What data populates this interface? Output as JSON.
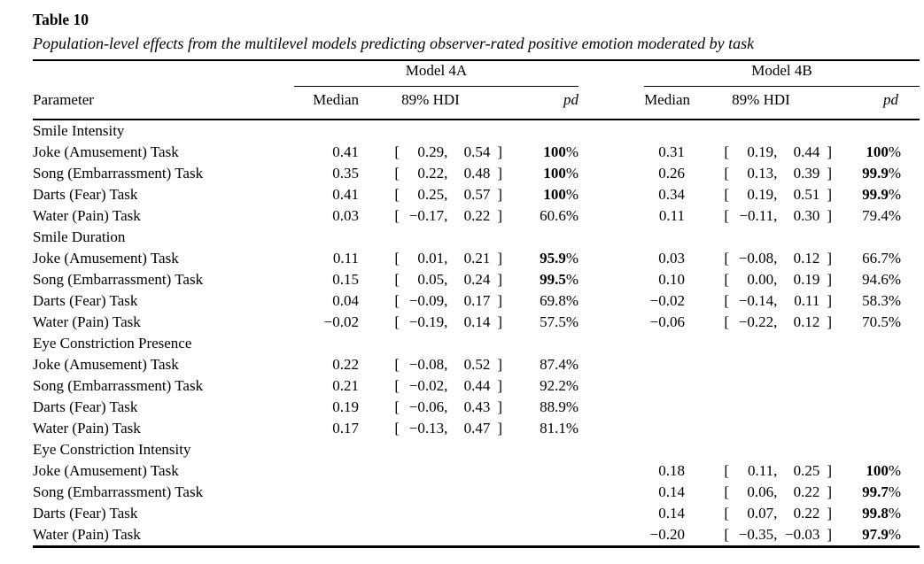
{
  "table": {
    "label": "Table 10",
    "caption": "Population-level effects from the multilevel models predicting observer-rated positive emotion moderated by task",
    "col_groups": [
      {
        "label": "Model 4A"
      },
      {
        "label": "Model 4B"
      }
    ],
    "columns": {
      "parameter": "Parameter",
      "median": "Median",
      "hdi": "89% HDI",
      "pd": "pd"
    },
    "sections": [
      {
        "header": "Smile Intensity",
        "rows": [
          {
            "parameter": "Joke (Amusement) Task",
            "m4a": {
              "median": "0.41",
              "hdi_lo": "0.29",
              "hdi_hi": "0.54",
              "pd": "100%",
              "pd_bold": true
            },
            "m4b": {
              "median": "0.31",
              "hdi_lo": "0.19",
              "hdi_hi": "0.44",
              "pd": "100%",
              "pd_bold": true
            }
          },
          {
            "parameter": "Song (Embarrassment) Task",
            "m4a": {
              "median": "0.35",
              "hdi_lo": "0.22",
              "hdi_hi": "0.48",
              "pd": "100%",
              "pd_bold": true
            },
            "m4b": {
              "median": "0.26",
              "hdi_lo": "0.13",
              "hdi_hi": "0.39",
              "pd": "99.9%",
              "pd_bold": true
            }
          },
          {
            "parameter": "Darts (Fear) Task",
            "m4a": {
              "median": "0.41",
              "hdi_lo": "0.25",
              "hdi_hi": "0.57",
              "pd": "100%",
              "pd_bold": true
            },
            "m4b": {
              "median": "0.34",
              "hdi_lo": "0.19",
              "hdi_hi": "0.51",
              "pd": "99.9%",
              "pd_bold": true
            }
          },
          {
            "parameter": "Water (Pain) Task",
            "m4a": {
              "median": "0.03",
              "hdi_lo": "−0.17",
              "hdi_hi": "0.22",
              "pd": "60.6%",
              "pd_bold": false
            },
            "m4b": {
              "median": "0.11",
              "hdi_lo": "−0.11",
              "hdi_hi": "0.30",
              "pd": "79.4%",
              "pd_bold": false
            }
          }
        ]
      },
      {
        "header": "Smile Duration",
        "rows": [
          {
            "parameter": "Joke (Amusement) Task",
            "m4a": {
              "median": "0.11",
              "hdi_lo": "0.01",
              "hdi_hi": "0.21",
              "pd": "95.9%",
              "pd_bold": true
            },
            "m4b": {
              "median": "0.03",
              "hdi_lo": "−0.08",
              "hdi_hi": "0.12",
              "pd": "66.7%",
              "pd_bold": false
            }
          },
          {
            "parameter": "Song (Embarrassment) Task",
            "m4a": {
              "median": "0.15",
              "hdi_lo": "0.05",
              "hdi_hi": "0.24",
              "pd": "99.5%",
              "pd_bold": true
            },
            "m4b": {
              "median": "0.10",
              "hdi_lo": "0.00",
              "hdi_hi": "0.19",
              "pd": "94.6%",
              "pd_bold": false
            }
          },
          {
            "parameter": "Darts (Fear) Task",
            "m4a": {
              "median": "0.04",
              "hdi_lo": "−0.09",
              "hdi_hi": "0.17",
              "pd": "69.8%",
              "pd_bold": false
            },
            "m4b": {
              "median": "−0.02",
              "hdi_lo": "−0.14",
              "hdi_hi": "0.11",
              "pd": "58.3%",
              "pd_bold": false
            }
          },
          {
            "parameter": "Water (Pain) Task",
            "m4a": {
              "median": "−0.02",
              "hdi_lo": "−0.19",
              "hdi_hi": "0.14",
              "pd": "57.5%",
              "pd_bold": false
            },
            "m4b": {
              "median": "−0.06",
              "hdi_lo": "−0.22",
              "hdi_hi": "0.12",
              "pd": "70.5%",
              "pd_bold": false
            }
          }
        ]
      },
      {
        "header": "Eye Constriction Presence",
        "rows": [
          {
            "parameter": "Joke (Amusement) Task",
            "m4a": {
              "median": "0.22",
              "hdi_lo": "−0.08",
              "hdi_hi": "0.52",
              "pd": "87.4%",
              "pd_bold": false
            },
            "m4b": null
          },
          {
            "parameter": "Song (Embarrassment) Task",
            "m4a": {
              "median": "0.21",
              "hdi_lo": "−0.02",
              "hdi_hi": "0.44",
              "pd": "92.2%",
              "pd_bold": false
            },
            "m4b": null
          },
          {
            "parameter": "Darts (Fear) Task",
            "m4a": {
              "median": "0.19",
              "hdi_lo": "−0.06",
              "hdi_hi": "0.43",
              "pd": "88.9%",
              "pd_bold": false
            },
            "m4b": null
          },
          {
            "parameter": "Water (Pain) Task",
            "m4a": {
              "median": "0.17",
              "hdi_lo": "−0.13",
              "hdi_hi": "0.47",
              "pd": "81.1%",
              "pd_bold": false
            },
            "m4b": null
          }
        ]
      },
      {
        "header": "Eye Constriction Intensity",
        "rows": [
          {
            "parameter": "Joke (Amusement) Task",
            "m4a": null,
            "m4b": {
              "median": "0.18",
              "hdi_lo": "0.11",
              "hdi_hi": "0.25",
              "pd": "100%",
              "pd_bold": true
            }
          },
          {
            "parameter": "Song (Embarrassment) Task",
            "m4a": null,
            "m4b": {
              "median": "0.14",
              "hdi_lo": "0.06",
              "hdi_hi": "0.22",
              "pd": "99.7%",
              "pd_bold": true
            }
          },
          {
            "parameter": "Darts (Fear) Task",
            "m4a": null,
            "m4b": {
              "median": "0.14",
              "hdi_lo": "0.07",
              "hdi_hi": "0.22",
              "pd": "99.8%",
              "pd_bold": true
            }
          },
          {
            "parameter": "Water (Pain) Task",
            "m4a": null,
            "m4b": {
              "median": "−0.20",
              "hdi_lo": "−0.35",
              "hdi_hi": "−0.03",
              "pd": "97.9%",
              "pd_bold": true
            }
          }
        ]
      }
    ]
  }
}
